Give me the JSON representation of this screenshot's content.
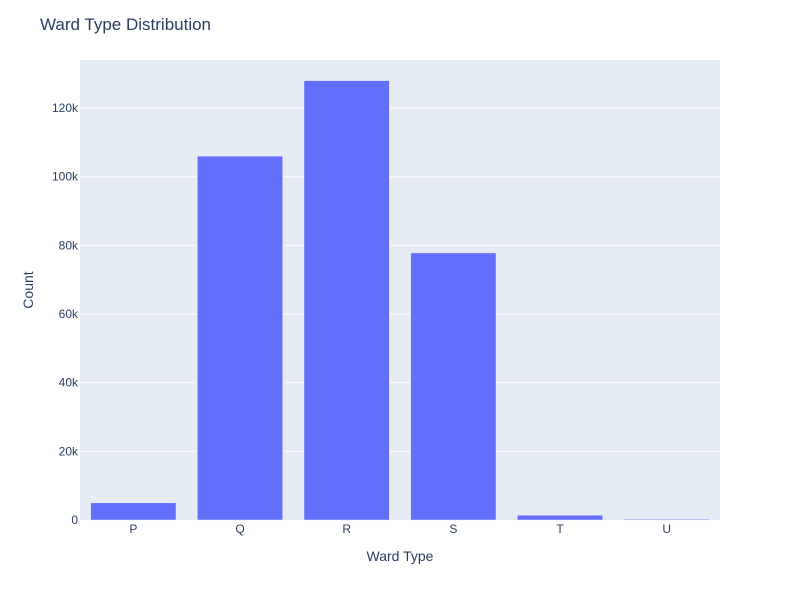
{
  "chart_data": {
    "type": "bar",
    "title": "Ward Type Distribution",
    "xlabel": "Ward Type",
    "ylabel": "Count",
    "categories": [
      "P",
      "Q",
      "R",
      "S",
      "T",
      "U"
    ],
    "values": [
      5000,
      106000,
      128000,
      77800,
      1400,
      250
    ],
    "ylim": [
      0,
      134000
    ],
    "yticks": [
      0,
      20000,
      40000,
      60000,
      80000,
      100000,
      120000
    ],
    "ytick_labels": [
      "0",
      "20k",
      "40k",
      "60k",
      "80k",
      "100k",
      "120k"
    ],
    "grid": true,
    "colors": {
      "bar": "#636efa",
      "plot_bg": "#e5ecf6",
      "grid": "#ffffff",
      "text": "#2a3f5f"
    }
  }
}
